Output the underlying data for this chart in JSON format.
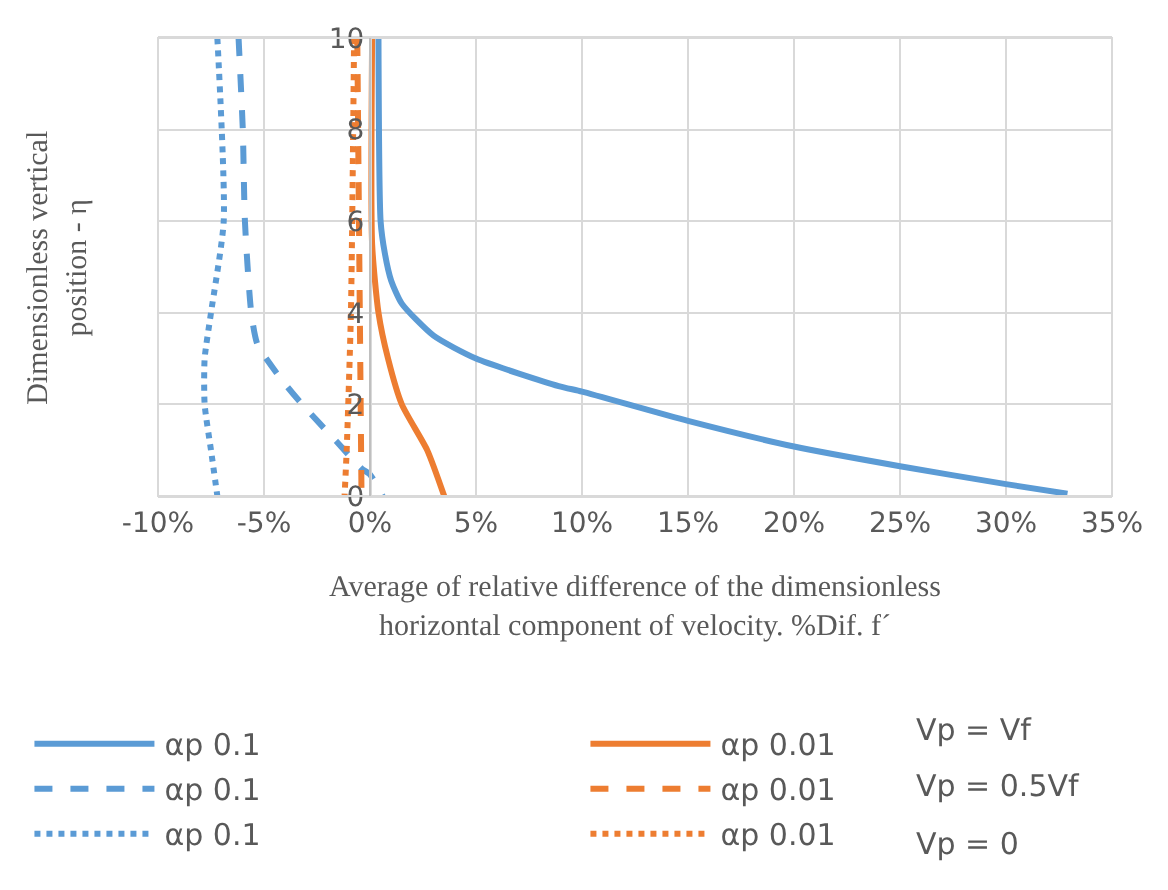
{
  "chart_data": {
    "type": "line",
    "xlabel": "Average of relative difference of the dimensionless\nhorizontal component of velocity. %Dif. f´",
    "ylabel": "Dimensionless vertical\nposition - η",
    "xlim": [
      -10,
      35
    ],
    "ylim": [
      0,
      10
    ],
    "xticks": [
      {
        "value": -10,
        "label": "-10%"
      },
      {
        "value": -5,
        "label": "-5%"
      },
      {
        "value": 0,
        "label": "0%"
      },
      {
        "value": 5,
        "label": "5%"
      },
      {
        "value": 10,
        "label": "10%"
      },
      {
        "value": 15,
        "label": "15%"
      },
      {
        "value": 20,
        "label": "20%"
      },
      {
        "value": 25,
        "label": "25%"
      },
      {
        "value": 30,
        "label": "30%"
      },
      {
        "value": 35,
        "label": "35%"
      }
    ],
    "yticks": [
      0,
      2,
      4,
      6,
      8,
      10
    ],
    "grid": true,
    "legend": "bottom",
    "marker": "none",
    "annotations": [
      "Vp = Vf",
      "Vp = 0.5Vf",
      "Vp = 0"
    ],
    "series": [
      {
        "name": "αp 0.1",
        "color": "#5b9bd5",
        "line_style": "solid",
        "x": [
          0.4,
          0.5,
          0.7,
          1,
          1.5,
          3,
          5,
          8.9,
          10,
          15,
          20,
          25,
          30,
          32.9
        ],
        "values": [
          10,
          6,
          5.3,
          4.7,
          4.2,
          3.5,
          3.0,
          2.4,
          2.28,
          1.64,
          1.08,
          0.65,
          0.26,
          0.05
        ]
      },
      {
        "name": "αp 0.01",
        "color": "#ed7d31",
        "line_style": "solid",
        "x": [
          0.1,
          0.1,
          0.4,
          0.85,
          1.5,
          2.7,
          3.5
        ],
        "values": [
          10,
          5.5,
          4,
          3,
          2,
          1,
          0
        ]
      },
      {
        "name": "αp 0.1",
        "color": "#5b9bd5",
        "line_style": "dashed",
        "x": [
          -6.2,
          -6,
          -5.9,
          -5.6,
          -5.3,
          -4.1,
          -3.2,
          -1.6,
          -0.4,
          0,
          0.6
        ],
        "values": [
          10,
          8,
          6,
          4,
          3.3,
          2.5,
          2,
          1.2,
          0.6,
          0.47,
          0
        ]
      },
      {
        "name": "αp 0.01",
        "color": "#ed7d31",
        "line_style": "dashed",
        "x": [
          -0.6,
          -0.5,
          -0.4
        ],
        "values": [
          10,
          5,
          0
        ]
      },
      {
        "name": "αp 0.1",
        "color": "#5b9bd5",
        "line_style": "dotted",
        "x": [
          -7.2,
          -6.9,
          -7.5,
          -7.8,
          -7.8,
          -7.5,
          -7.2
        ],
        "values": [
          10,
          6,
          4,
          3,
          2,
          1,
          0
        ]
      },
      {
        "name": "αp 0.01",
        "color": "#ed7d31",
        "line_style": "dotted",
        "x": [
          -0.75,
          -0.9,
          -1.1,
          -1.2
        ],
        "values": [
          10,
          4,
          1,
          0
        ]
      }
    ]
  }
}
